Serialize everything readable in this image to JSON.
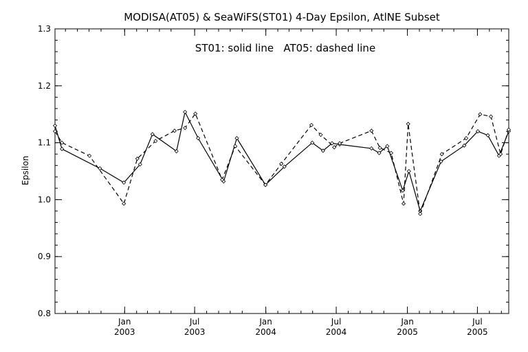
{
  "chart_data": {
    "type": "line",
    "title": "MODISA(AT05) & SeaWiFS(ST01) 4-Day Epsilon, AtlNE Subset",
    "annotation": "ST01: solid line   AT05: dashed line",
    "ylabel": "Epsilon",
    "xlabel": "",
    "xlim": [
      "2002-07-05",
      "2005-09-20"
    ],
    "ylim": [
      0.8,
      1.3
    ],
    "yticks": [
      "0.8",
      "0.9",
      "1.0",
      "1.1",
      "1.2",
      "1.3"
    ],
    "xticks": [
      {
        "date": "2003-01-01",
        "month": "Jan",
        "year": "2003"
      },
      {
        "date": "2003-07-01",
        "month": "Jul",
        "year": "2003"
      },
      {
        "date": "2004-01-01",
        "month": "Jan",
        "year": "2004"
      },
      {
        "date": "2004-07-01",
        "month": "Jul",
        "year": "2004"
      },
      {
        "date": "2005-01-01",
        "month": "Jan",
        "year": "2005"
      },
      {
        "date": "2005-07-01",
        "month": "Jul",
        "year": "2005"
      }
    ],
    "grid": false,
    "series": [
      {
        "name": "ST01",
        "style": "solid",
        "points": [
          [
            "2002-07-05",
            1.13
          ],
          [
            "2002-07-23",
            1.089
          ],
          [
            "2002-10-29",
            1.055
          ],
          [
            "2002-12-30",
            1.03
          ],
          [
            "2003-02-10",
            1.062
          ],
          [
            "2003-03-14",
            1.115
          ],
          [
            "2003-05-15",
            1.085
          ],
          [
            "2003-06-06",
            1.154
          ],
          [
            "2003-07-10",
            1.108
          ],
          [
            "2003-09-14",
            1.032
          ],
          [
            "2003-10-18",
            1.108
          ],
          [
            "2003-12-31",
            1.026
          ],
          [
            "2004-02-18",
            1.058
          ],
          [
            "2004-04-30",
            1.1
          ],
          [
            "2004-05-28",
            1.086
          ],
          [
            "2004-06-20",
            1.099
          ],
          [
            "2004-07-10",
            1.097
          ],
          [
            "2004-09-30",
            1.09
          ],
          [
            "2004-10-20",
            1.082
          ],
          [
            "2004-11-10",
            1.094
          ],
          [
            "2004-12-20",
            1.016
          ],
          [
            "2005-01-05",
            1.05
          ],
          [
            "2005-02-03",
            0.98
          ],
          [
            "2005-03-29",
            1.067
          ],
          [
            "2005-05-28",
            1.095
          ],
          [
            "2005-07-02",
            1.12
          ],
          [
            "2005-07-28",
            1.113
          ],
          [
            "2005-08-26",
            1.077
          ],
          [
            "2005-09-20",
            1.12
          ]
        ]
      },
      {
        "name": "AT05",
        "style": "dashed",
        "points": [
          [
            "2002-07-05",
            1.12
          ],
          [
            "2002-07-23",
            1.1
          ],
          [
            "2002-10-02",
            1.077
          ],
          [
            "2002-12-30",
            0.993
          ],
          [
            "2003-02-03",
            1.072
          ],
          [
            "2003-03-22",
            1.103
          ],
          [
            "2003-05-10",
            1.121
          ],
          [
            "2003-06-06",
            1.126
          ],
          [
            "2003-07-03",
            1.151
          ],
          [
            "2003-09-10",
            1.035
          ],
          [
            "2003-10-14",
            1.094
          ],
          [
            "2003-12-31",
            1.026
          ],
          [
            "2004-02-10",
            1.063
          ],
          [
            "2004-04-28",
            1.131
          ],
          [
            "2004-05-22",
            1.114
          ],
          [
            "2004-06-26",
            1.092
          ],
          [
            "2004-07-10",
            1.099
          ],
          [
            "2004-09-30",
            1.121
          ],
          [
            "2004-10-22",
            1.091
          ],
          [
            "2004-11-20",
            1.082
          ],
          [
            "2004-12-22",
            0.993
          ],
          [
            "2005-01-03",
            1.133
          ],
          [
            "2005-02-03",
            0.975
          ],
          [
            "2005-03-31",
            1.08
          ],
          [
            "2005-06-02",
            1.108
          ],
          [
            "2005-07-08",
            1.15
          ],
          [
            "2005-08-05",
            1.146
          ],
          [
            "2005-08-30",
            1.08
          ],
          [
            "2005-09-20",
            1.123
          ]
        ]
      }
    ]
  }
}
